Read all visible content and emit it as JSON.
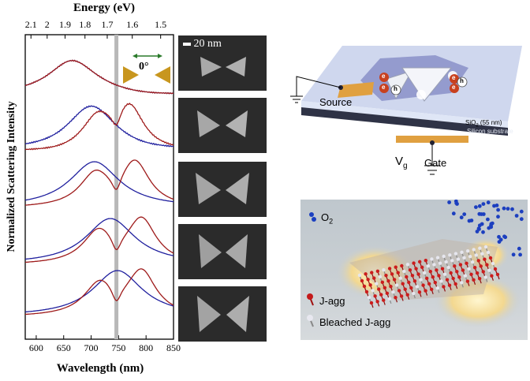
{
  "chart_data": {
    "type": "line",
    "xlabel": "Wavelength (nm)",
    "ylabel": "Normalized Scattering Intensity",
    "top_label": "Energy (eV)",
    "xlim": [
      580,
      850
    ],
    "x_ticks": [
      "600",
      "650",
      "700",
      "750",
      "800",
      "850"
    ],
    "top_ticks": [
      "2.1",
      "2",
      "1.9",
      "1.8",
      "1.7",
      "1.6",
      "1.5"
    ],
    "angle_label": "0°",
    "marker_wavelength": 746,
    "colors": {
      "blue": "#1f1f9e",
      "red": "#9e1a1a",
      "marker": "#b8b8b8",
      "gold": "#c8961e"
    },
    "spectra": [
      {
        "blue_peak": 665,
        "red_peaks": [
          665
        ]
      },
      {
        "blue_peak": 700,
        "red_peaks": [
          712,
          770
        ]
      },
      {
        "blue_peak": 706,
        "red_peaks": [
          708,
          780
        ]
      },
      {
        "blue_peak": 735,
        "red_peaks": [
          714,
          792
        ]
      },
      {
        "blue_peak": 748,
        "red_peaks": [
          716,
          792
        ]
      }
    ]
  },
  "scale_bar_label": "20 nm",
  "device": {
    "source_label": "Source",
    "gate_label": "Gate",
    "vg_label": "V",
    "vg_sub": "g",
    "sio2_label": "SiO",
    "sio2_sub": "2",
    "sio2_rest": " (55 nm)",
    "substrate_label": "Silicon substrate",
    "electron": "e",
    "hole": "h"
  },
  "render": {
    "o2_label": "O",
    "o2_sub": "2",
    "jagg_label": "J-agg",
    "bleached_label": "Bleached J-agg"
  }
}
